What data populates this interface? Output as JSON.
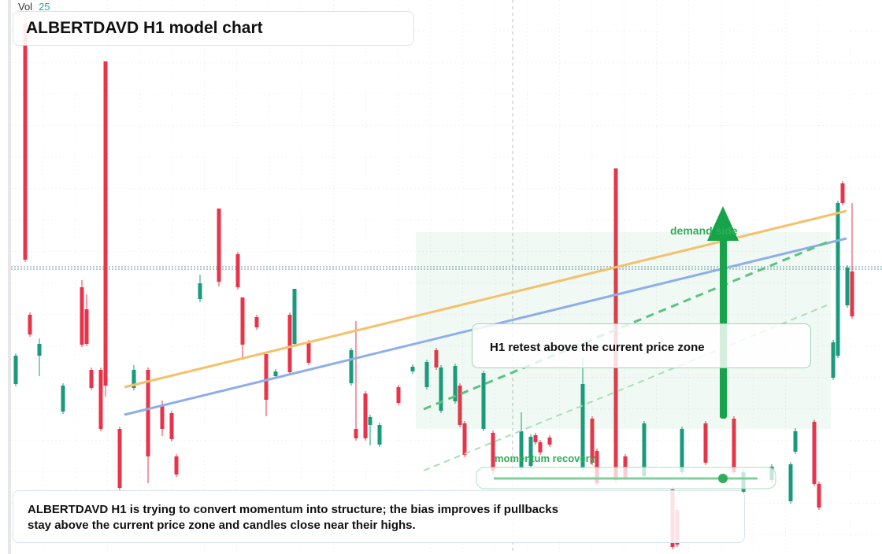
{
  "chart_data": {
    "type": "candlestick",
    "title": "ALBERTDAVD H1 model chart",
    "volume_label": "Vol",
    "volume_value": 25,
    "annotations": [
      "demand side",
      "H1 retest above the current price zone",
      "momentum recovery"
    ],
    "caption": "ALBERTDAVD H1 is trying to convert momentum into structure; the bias improves if pullbacks stay above the current price zone and candles close near their highs.",
    "up_color": "#1a9a7c",
    "down_color": "#e8344a",
    "xlim": [
      0,
      184
    ],
    "ylim": [
      0,
      704
    ],
    "x": [
      1,
      3,
      4,
      6,
      11,
      15,
      16,
      17,
      19,
      20,
      23,
      26,
      29,
      32,
      34,
      35,
      40,
      44,
      48,
      49,
      52,
      54,
      56,
      59,
      60,
      63,
      72,
      73,
      75,
      76,
      78,
      82,
      85,
      88,
      90,
      91,
      94,
      95,
      96,
      100,
      102,
      108,
      110,
      111,
      112,
      114,
      121,
      123,
      124,
      128,
      130,
      134,
      140,
      141,
      142,
      147,
      153,
      155,
      161,
      165,
      166,
      170,
      171,
      174,
      175,
      176,
      177,
      178
    ],
    "open": [
      216,
      674,
      304,
      252,
      181,
      339,
      311,
      234,
      234,
      626,
      159,
      211,
      234,
      189,
      179,
      124,
      324,
      439,
      381,
      326,
      301,
      254,
      226,
      304,
      267,
      269,
      217,
      159,
      204,
      164,
      139,
      212,
      232,
      212,
      259,
      182,
      194,
      214,
      166,
      159,
      154,
      109,
      112,
      151,
      142,
      148,
      109,
      172,
      131,
      490,
      124,
      99,
      82,
      56,
      104,
      166,
      172,
      79,
      94,
      67,
      130,
      168,
      89,
      224,
      252,
      471,
      316,
      359
    ],
    "high": [
      255,
      690,
      307,
      274,
      217,
      348,
      330,
      237,
      237,
      626,
      162,
      240,
      237,
      195,
      182,
      127,
      355,
      439,
      384,
      326,
      304,
      254,
      235,
      307,
      337,
      272,
      262,
      296,
      207,
      177,
      167,
      215,
      241,
      247,
      262,
      240,
      242,
      217,
      169,
      233,
      157,
      180,
      152,
      154,
      145,
      151,
      250,
      175,
      134,
      490,
      127,
      169,
      85,
      59,
      162,
      169,
      175,
      107,
      114,
      117,
      160,
      171,
      92,
      272,
      449,
      474,
      367,
      446
    ],
    "low": [
      213,
      371,
      276,
      226,
      178,
      263,
      264,
      208,
      156,
      200,
      80,
      208,
      90,
      150,
      143,
      98,
      320,
      340,
      336,
      250,
      285,
      175,
      223,
      228,
      264,
      240,
      214,
      144,
      144,
      138,
      136,
      189,
      229,
      209,
      234,
      179,
      191,
      161,
      123,
      156,
      103,
      106,
      109,
      139,
      126,
      136,
      106,
      113,
      87,
      91,
      94,
      96,
      6,
      9,
      101,
      113,
      101,
      76,
      91,
      64,
      127,
      86,
      56,
      221,
      249,
      443,
      313,
      299
    ],
    "close": [
      252,
      374,
      279,
      267,
      214,
      266,
      267,
      211,
      159,
      214,
      84,
      234,
      124,
      159,
      146,
      101,
      344,
      346,
      339,
      266,
      288,
      196,
      232,
      231,
      337,
      243,
      259,
      147,
      147,
      174,
      164,
      192,
      238,
      244,
      237,
      237,
      239,
      164,
      126,
      230,
      106,
      156,
      149,
      142,
      129,
      139,
      216,
      116,
      90,
      94,
      97,
      166,
      9,
      12,
      159,
      116,
      104,
      104,
      111,
      114,
      156,
      89,
      59,
      269,
      446,
      446,
      364,
      302
    ]
  }
}
